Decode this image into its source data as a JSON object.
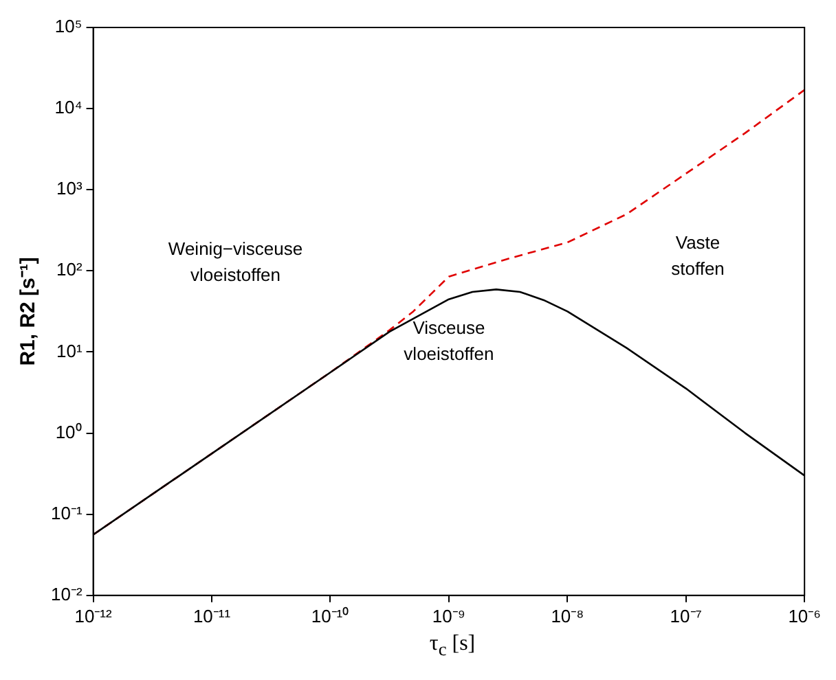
{
  "chart_data": {
    "type": "line",
    "xlabel": "τ$_{c}$  [s]",
    "ylabel": "R1, R2 [s⁻¹]",
    "log": "xy",
    "grid": false,
    "legend": false,
    "marker": "none",
    "annotations": [
      "Weinig−visceuse\nvloeistoffen",
      "Visceuse\nvloeistoffen",
      "Vaste\nstoffen"
    ],
    "xlim": [
      1e-12,
      1e-06
    ],
    "ylim": [
      0.01,
      100000
    ],
    "xticks": [
      {
        "value": 1e-12,
        "label": "10⁻¹²"
      },
      {
        "value": 1e-11,
        "label": "10⁻¹¹"
      },
      {
        "value": 1e-10,
        "label": "10⁻¹⁰"
      },
      {
        "value": 1e-09,
        "label": "10⁻⁹"
      },
      {
        "value": 1e-08,
        "label": "10⁻⁸"
      },
      {
        "value": 1e-07,
        "label": "10⁻⁷"
      },
      {
        "value": 1e-06,
        "label": "10⁻⁶"
      }
    ],
    "yticks": [
      {
        "value": 0.01,
        "label": "10⁻²"
      },
      {
        "value": 0.1,
        "label": "10⁻¹"
      },
      {
        "value": 1,
        "label": "10⁰"
      },
      {
        "value": 10,
        "label": "10¹"
      },
      {
        "value": 100,
        "label": "10²"
      },
      {
        "value": 1000,
        "label": "10³"
      },
      {
        "value": 10000,
        "label": "10⁴"
      },
      {
        "value": 100000,
        "label": "10⁵"
      }
    ],
    "series": [
      {
        "color": "#000000",
        "line_style": "solid",
        "x": [
          1e-12,
          1e-11,
          1e-10,
          3.16e-10,
          1e-09,
          1.58e-09,
          2.51e-09,
          3.98e-09,
          6.31e-09,
          1e-08,
          3.16e-08,
          1e-07,
          3.16e-07,
          1e-06
        ],
        "values": [
          0.056,
          0.56,
          5.6,
          17.8,
          44.7,
          55,
          59,
          55,
          43.6,
          31.6,
          11.2,
          3.55,
          1.0,
          0.3
        ]
      },
      {
        "color": "#e00000",
        "line_style": "dashed",
        "x": [
          1e-12,
          1e-11,
          1e-10,
          3.16e-10,
          5.01e-10,
          1e-09,
          3.16e-09,
          1e-08,
          3.16e-08,
          1e-07,
          3.16e-07,
          1e-06
        ],
        "values": [
          0.056,
          0.56,
          5.6,
          18.6,
          31.6,
          85,
          141,
          224,
          500,
          1580,
          5000,
          17000
        ]
      }
    ]
  }
}
